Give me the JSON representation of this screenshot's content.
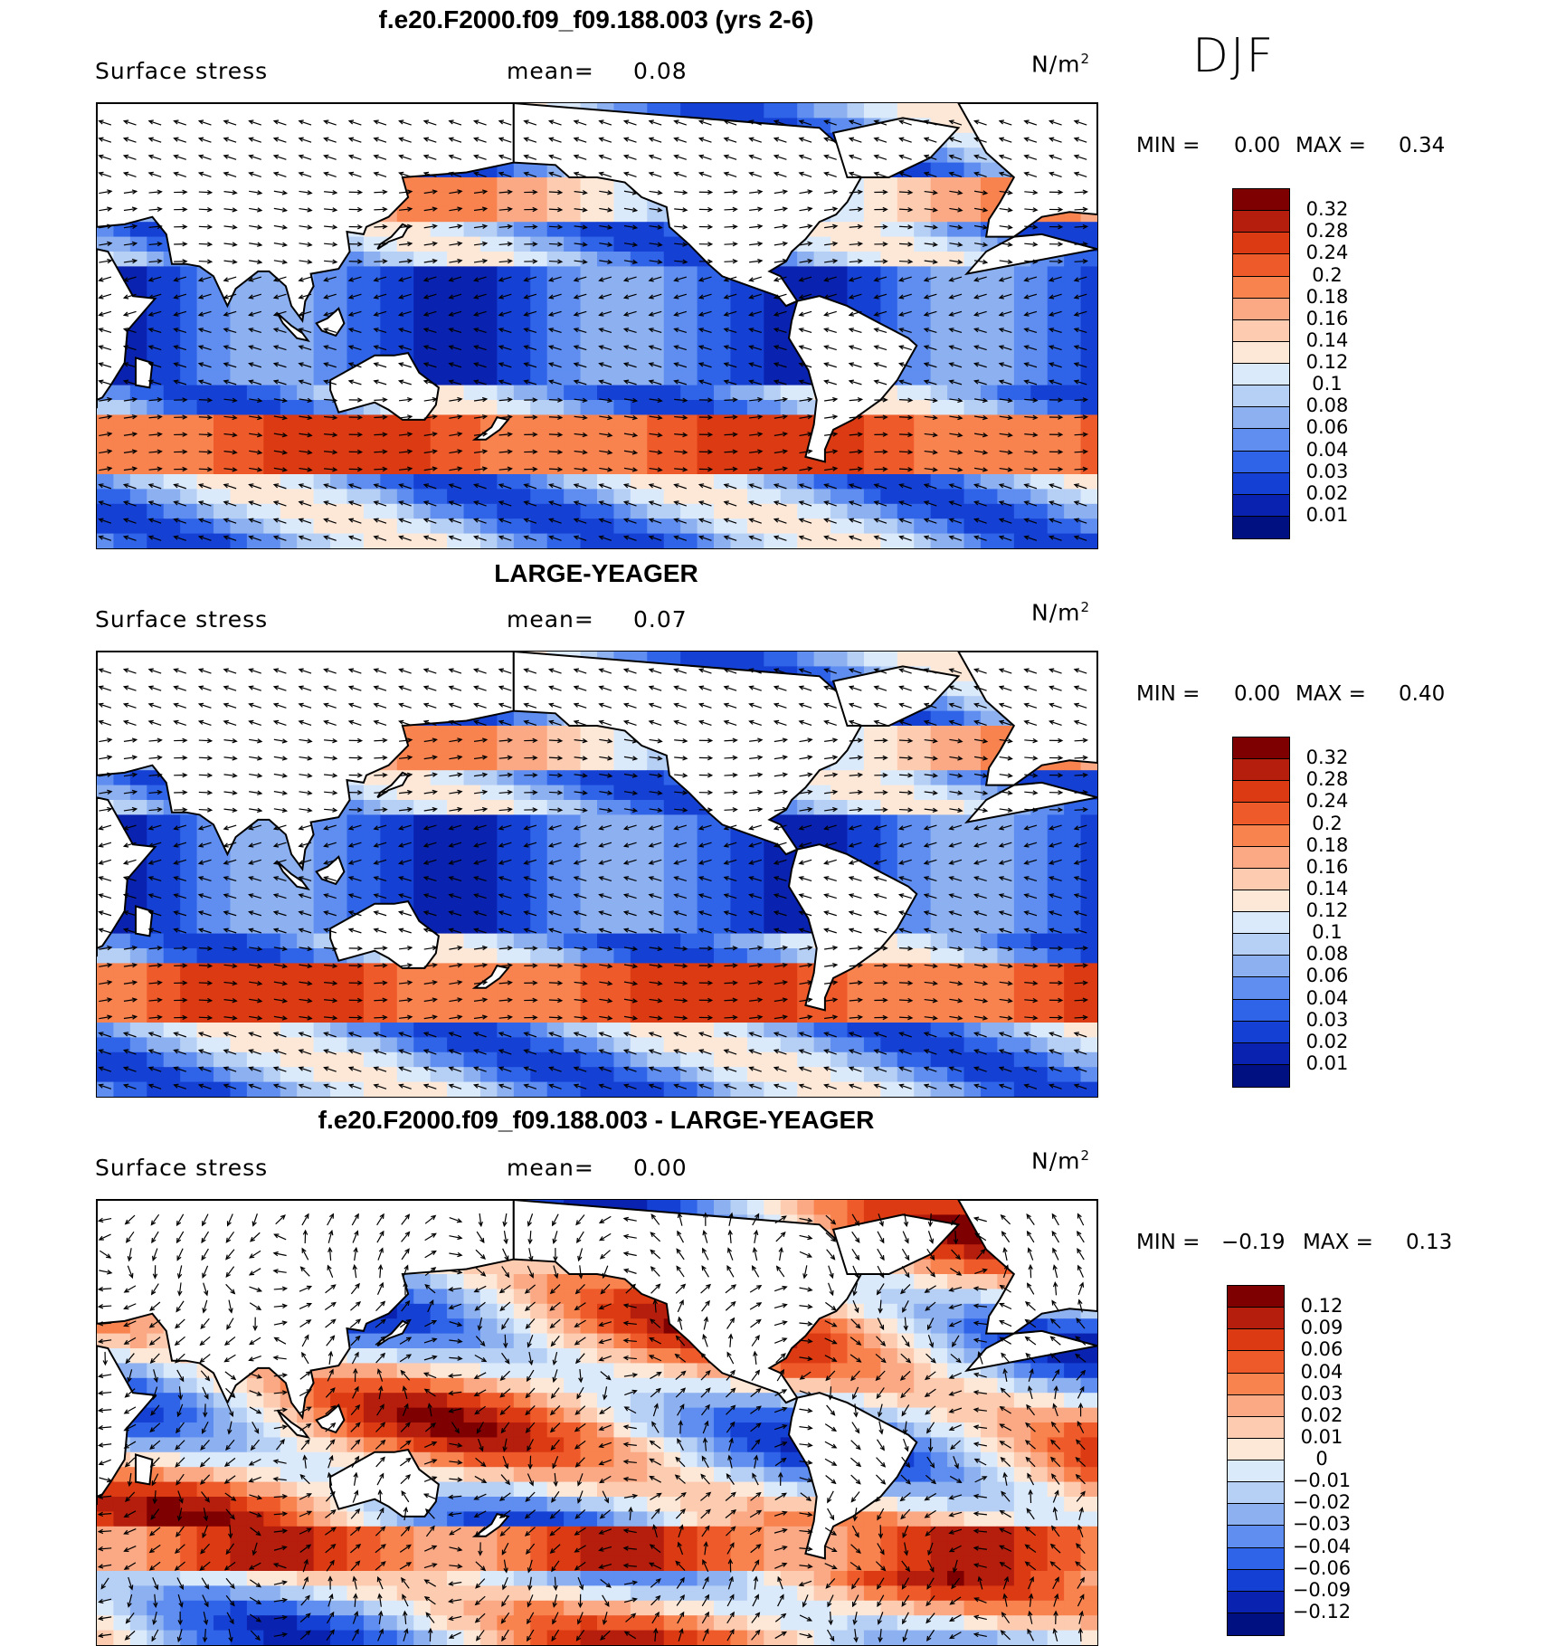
{
  "season": "DJF",
  "panels": [
    {
      "title": "f.e20.F2000.f09_f09.188.003 (yrs 2-6)",
      "variable": "Surface stress",
      "mean_label": "mean=",
      "mean_value": "0.08",
      "units_base": "N/m",
      "units_exp": "2",
      "min_label": "MIN =",
      "min_value": "0.00",
      "max_label": "MAX =",
      "max_value": "0.34",
      "colorbar_labels": [
        "0.32",
        "0.28",
        "0.24",
        "0.2",
        "0.18",
        "0.16",
        "0.14",
        "0.12",
        "0.1",
        "0.08",
        "0.06",
        "0.04",
        "0.03",
        "0.02",
        "0.01"
      ],
      "colors": [
        "#7f0000",
        "#b51d0d",
        "#dc3a12",
        "#ee5a2a",
        "#f8834f",
        "#fba985",
        "#fccbb0",
        "#fde8d8",
        "#dbeafb",
        "#b6cff5",
        "#8db1f0",
        "#5f8ef0",
        "#2f64e8",
        "#1540d4",
        "#0a22b0",
        "#001080"
      ]
    },
    {
      "title": "LARGE-YEAGER",
      "variable": "Surface stress",
      "mean_label": "mean=",
      "mean_value": "0.07",
      "units_base": "N/m",
      "units_exp": "2",
      "min_label": "MIN =",
      "min_value": "0.00",
      "max_label": "MAX =",
      "max_value": "0.40",
      "colorbar_labels": [
        "0.32",
        "0.28",
        "0.24",
        "0.2",
        "0.18",
        "0.16",
        "0.14",
        "0.12",
        "0.1",
        "0.08",
        "0.06",
        "0.04",
        "0.03",
        "0.02",
        "0.01"
      ],
      "colors": [
        "#7f0000",
        "#b51d0d",
        "#dc3a12",
        "#ee5a2a",
        "#f8834f",
        "#fba985",
        "#fccbb0",
        "#fde8d8",
        "#dbeafb",
        "#b6cff5",
        "#8db1f0",
        "#5f8ef0",
        "#2f64e8",
        "#1540d4",
        "#0a22b0",
        "#001080"
      ]
    },
    {
      "title": "f.e20.F2000.f09_f09.188.003 - LARGE-YEAGER",
      "variable": "Surface stress",
      "mean_label": "mean=",
      "mean_value": "0.00",
      "units_base": "N/m",
      "units_exp": "2",
      "min_label": "MIN =",
      "min_value": "−0.19",
      "max_label": "MAX =",
      "max_value": "0.13",
      "colorbar_labels": [
        "0.12",
        "0.09",
        "0.06",
        "0.04",
        "0.03",
        "0.02",
        "0.01",
        "0",
        "−0.01",
        "−0.02",
        "−0.03",
        "−0.04",
        "−0.06",
        "−0.09",
        "−0.12"
      ],
      "colors": [
        "#7f0000",
        "#b51d0d",
        "#dc3a12",
        "#ee5a2a",
        "#f8834f",
        "#fba985",
        "#fccbb0",
        "#fde8d8",
        "#dbeafb",
        "#b6cff5",
        "#8db1f0",
        "#5f8ef0",
        "#2f64e8",
        "#1540d4",
        "#0a22b0",
        "#001080"
      ]
    }
  ]
}
